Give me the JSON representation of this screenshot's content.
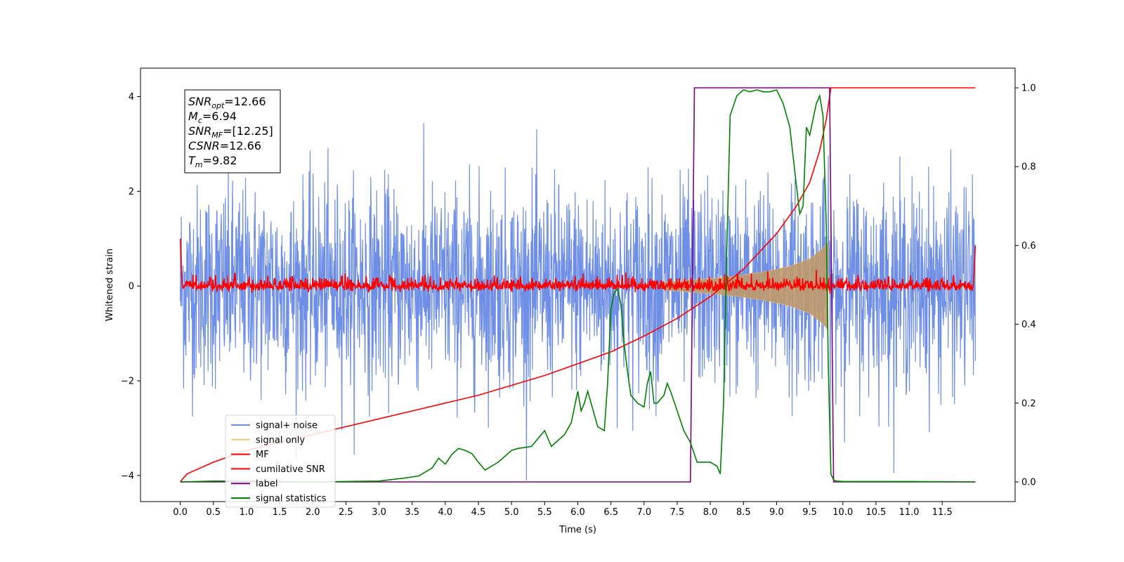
{
  "chart_data": {
    "type": "line",
    "xlabel": "Time (s)",
    "ylabel": "Whitened strain",
    "xlim": [
      -0.6,
      12.6
    ],
    "ylim": [
      -4.55,
      4.6
    ],
    "ylim_right": [
      -0.05,
      1.05
    ],
    "x_ticks": [
      "0.0",
      "0.5",
      "1.0",
      "1.5",
      "2.0",
      "2.5",
      "3.0",
      "3.5",
      "4.0",
      "4.5",
      "5.0",
      "5.5",
      "6.0",
      "6.5",
      "7.0",
      "7.5",
      "8.0",
      "8.5",
      "9.0",
      "9.5",
      "10.0",
      "10.5",
      "11.0",
      "11.5"
    ],
    "y_ticks_left": [
      "4",
      "2",
      "0",
      "−2",
      "−4"
    ],
    "y_ticks_right": [
      "1.0",
      "0.8",
      "0.6",
      "0.4",
      "0.2",
      "0.0"
    ],
    "annotation": [
      {
        "sym": "SNR",
        "sub": "opt",
        "val": "=12.66"
      },
      {
        "sym": "M",
        "sub": "c",
        "val": "=6.94"
      },
      {
        "sym": "SNR",
        "sub": "MF",
        "val": "=[12.25]"
      },
      {
        "sym": "CSNR",
        "sub": "",
        "val": "=12.66"
      },
      {
        "sym": "T",
        "sub": "m",
        "val": "=9.82"
      }
    ],
    "legend": {
      "placement": "lower-left",
      "entries": [
        {
          "label": "signal+ noise",
          "color": "#6f8fe6"
        },
        {
          "label": "signal only",
          "color": "#f4c77a"
        },
        {
          "label": "MF",
          "color": "#ff0000"
        },
        {
          "label": "cumilative SNR",
          "color": "#ff0000"
        },
        {
          "label": "label",
          "color": "#800080"
        },
        {
          "label": "signal statistics",
          "color": "#008000"
        }
      ]
    },
    "series": [
      {
        "name": "signal+ noise",
        "axis": "left",
        "color": "#6f8fe6",
        "description_values": {
          "x_range": [
            0,
            12.0
          ],
          "mean": 0,
          "std": 1.0
        }
      },
      {
        "name": "signal only",
        "axis": "left",
        "color": "#f4c77a",
        "fill_color": "#c19a6b",
        "x": [
          7.3,
          7.6,
          8.0,
          8.4,
          8.8,
          9.2,
          9.5,
          9.7,
          9.78
        ],
        "envelope": [
          0.08,
          0.12,
          0.16,
          0.22,
          0.3,
          0.42,
          0.58,
          0.8,
          0.95
        ]
      },
      {
        "name": "MF",
        "axis": "left",
        "color": "#ff0000",
        "x_range": [
          0,
          12.0
        ],
        "baseline": 0.0,
        "std": 0.08
      },
      {
        "name": "cumilative SNR",
        "axis": "right",
        "color": "#ff0000",
        "x": [
          0,
          0.1,
          0.5,
          1.0,
          1.5,
          2.0,
          2.5,
          3.0,
          3.5,
          4.0,
          4.5,
          5.0,
          5.5,
          6.0,
          6.5,
          7.0,
          7.5,
          8.0,
          8.5,
          9.0,
          9.3,
          9.5,
          9.65,
          9.75,
          9.82,
          12.0
        ],
        "y": [
          0.0,
          0.02,
          0.05,
          0.08,
          0.1,
          0.12,
          0.14,
          0.16,
          0.18,
          0.2,
          0.22,
          0.245,
          0.27,
          0.3,
          0.33,
          0.37,
          0.415,
          0.47,
          0.54,
          0.63,
          0.7,
          0.76,
          0.84,
          0.92,
          1.0,
          1.0
        ]
      },
      {
        "name": "label",
        "axis": "right",
        "color": "#800080",
        "x": [
          0,
          7.7,
          7.76,
          9.8,
          9.86,
          12.0
        ],
        "y": [
          0,
          0,
          1,
          1,
          0,
          0
        ]
      },
      {
        "name": "signal statistics",
        "axis": "right",
        "color": "#008000",
        "x": [
          0,
          0.5,
          1.0,
          1.5,
          2.0,
          2.5,
          3.0,
          3.2,
          3.4,
          3.6,
          3.8,
          3.9,
          4.0,
          4.1,
          4.2,
          4.3,
          4.4,
          4.5,
          4.6,
          4.8,
          5.0,
          5.1,
          5.3,
          5.5,
          5.6,
          5.8,
          5.9,
          6.0,
          6.05,
          6.1,
          6.15,
          6.2,
          6.3,
          6.4,
          6.45,
          6.5,
          6.55,
          6.6,
          6.65,
          6.7,
          6.75,
          6.8,
          6.9,
          7.0,
          7.05,
          7.1,
          7.15,
          7.2,
          7.3,
          7.35,
          7.4,
          7.5,
          7.6,
          7.7,
          7.8,
          8.0,
          8.1,
          8.15,
          8.2,
          8.25,
          8.3,
          8.4,
          8.5,
          8.6,
          8.7,
          8.8,
          8.9,
          9.0,
          9.1,
          9.2,
          9.3,
          9.35,
          9.4,
          9.45,
          9.5,
          9.55,
          9.6,
          9.65,
          9.7,
          9.75,
          9.78,
          9.82,
          9.86,
          9.9,
          10.0,
          11.0,
          12.0
        ],
        "y": [
          0,
          0.002,
          0.002,
          0.001,
          0,
          0.001,
          0.002,
          0.006,
          0.01,
          0.015,
          0.035,
          0.06,
          0.045,
          0.07,
          0.085,
          0.08,
          0.072,
          0.05,
          0.03,
          0.05,
          0.08,
          0.085,
          0.09,
          0.13,
          0.09,
          0.12,
          0.15,
          0.23,
          0.18,
          0.2,
          0.23,
          0.2,
          0.14,
          0.13,
          0.25,
          0.44,
          0.48,
          0.49,
          0.45,
          0.35,
          0.28,
          0.22,
          0.2,
          0.19,
          0.25,
          0.28,
          0.2,
          0.2,
          0.22,
          0.25,
          0.23,
          0.18,
          0.13,
          0.1,
          0.05,
          0.05,
          0.04,
          0.02,
          0.2,
          0.6,
          0.93,
          0.98,
          0.995,
          0.99,
          0.995,
          0.99,
          0.99,
          0.995,
          0.96,
          0.9,
          0.75,
          0.68,
          0.7,
          0.9,
          0.88,
          0.92,
          0.96,
          0.98,
          0.93,
          0.65,
          0.3,
          0.02,
          0.005,
          0.002,
          0.001,
          0.001,
          0.0
        ]
      }
    ]
  }
}
